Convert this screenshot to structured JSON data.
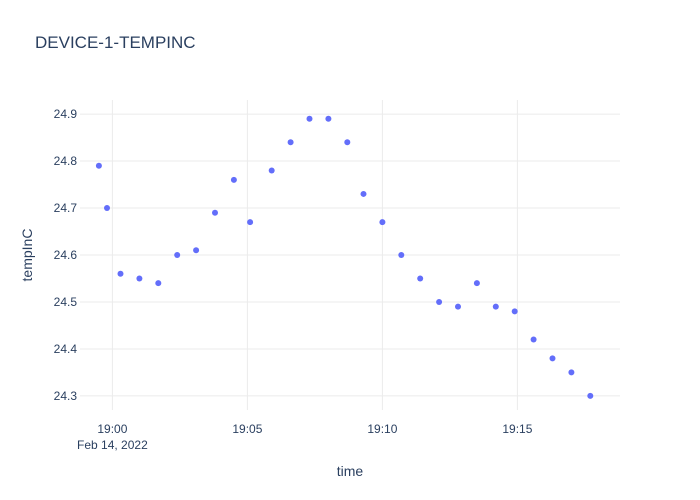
{
  "chart_data": {
    "type": "scatter",
    "title": "DEVICE-1-TEMPINC",
    "xlabel": "time",
    "ylabel": "tempInC",
    "x_ticks": [
      {
        "time": "19:00",
        "minute": 0,
        "label": "19:00",
        "sublabel": "Feb 14, 2022"
      },
      {
        "time": "19:05",
        "minute": 5,
        "label": "19:05",
        "sublabel": ""
      },
      {
        "time": "19:10",
        "minute": 10,
        "label": "19:10",
        "sublabel": ""
      },
      {
        "time": "19:15",
        "minute": 15,
        "label": "19:15",
        "sublabel": ""
      }
    ],
    "y_ticks": [
      24.3,
      24.4,
      24.5,
      24.6,
      24.7,
      24.8,
      24.9
    ],
    "xlim": [
      "18:58.8",
      "19:18.8"
    ],
    "ylim": [
      24.27,
      24.93
    ],
    "marker_color": "#636efa",
    "grid": true,
    "points": [
      {
        "time": "18:59.5",
        "y": 24.79
      },
      {
        "time": "18:59.8",
        "y": 24.7
      },
      {
        "time": "19:00.3",
        "y": 24.56
      },
      {
        "time": "19:01.0",
        "y": 24.55
      },
      {
        "time": "19:01.7",
        "y": 24.54
      },
      {
        "time": "19:02.4",
        "y": 24.6
      },
      {
        "time": "19:03.1",
        "y": 24.61
      },
      {
        "time": "19:03.8",
        "y": 24.69
      },
      {
        "time": "19:04.5",
        "y": 24.76
      },
      {
        "time": "19:05.1",
        "y": 24.67
      },
      {
        "time": "19:05.9",
        "y": 24.78
      },
      {
        "time": "19:06.6",
        "y": 24.84
      },
      {
        "time": "19:07.3",
        "y": 24.89
      },
      {
        "time": "19:08.0",
        "y": 24.89
      },
      {
        "time": "19:08.7",
        "y": 24.84
      },
      {
        "time": "19:09.3",
        "y": 24.73
      },
      {
        "time": "19:10.0",
        "y": 24.67
      },
      {
        "time": "19:10.7",
        "y": 24.6
      },
      {
        "time": "19:11.4",
        "y": 24.55
      },
      {
        "time": "19:12.1",
        "y": 24.5
      },
      {
        "time": "19:12.8",
        "y": 24.49
      },
      {
        "time": "19:13.5",
        "y": 24.54
      },
      {
        "time": "19:14.2",
        "y": 24.49
      },
      {
        "time": "19:14.9",
        "y": 24.48
      },
      {
        "time": "19:15.6",
        "y": 24.42
      },
      {
        "time": "19:16.3",
        "y": 24.38
      },
      {
        "time": "19:17.0",
        "y": 24.35
      },
      {
        "time": "19:17.7",
        "y": 24.3
      }
    ]
  }
}
